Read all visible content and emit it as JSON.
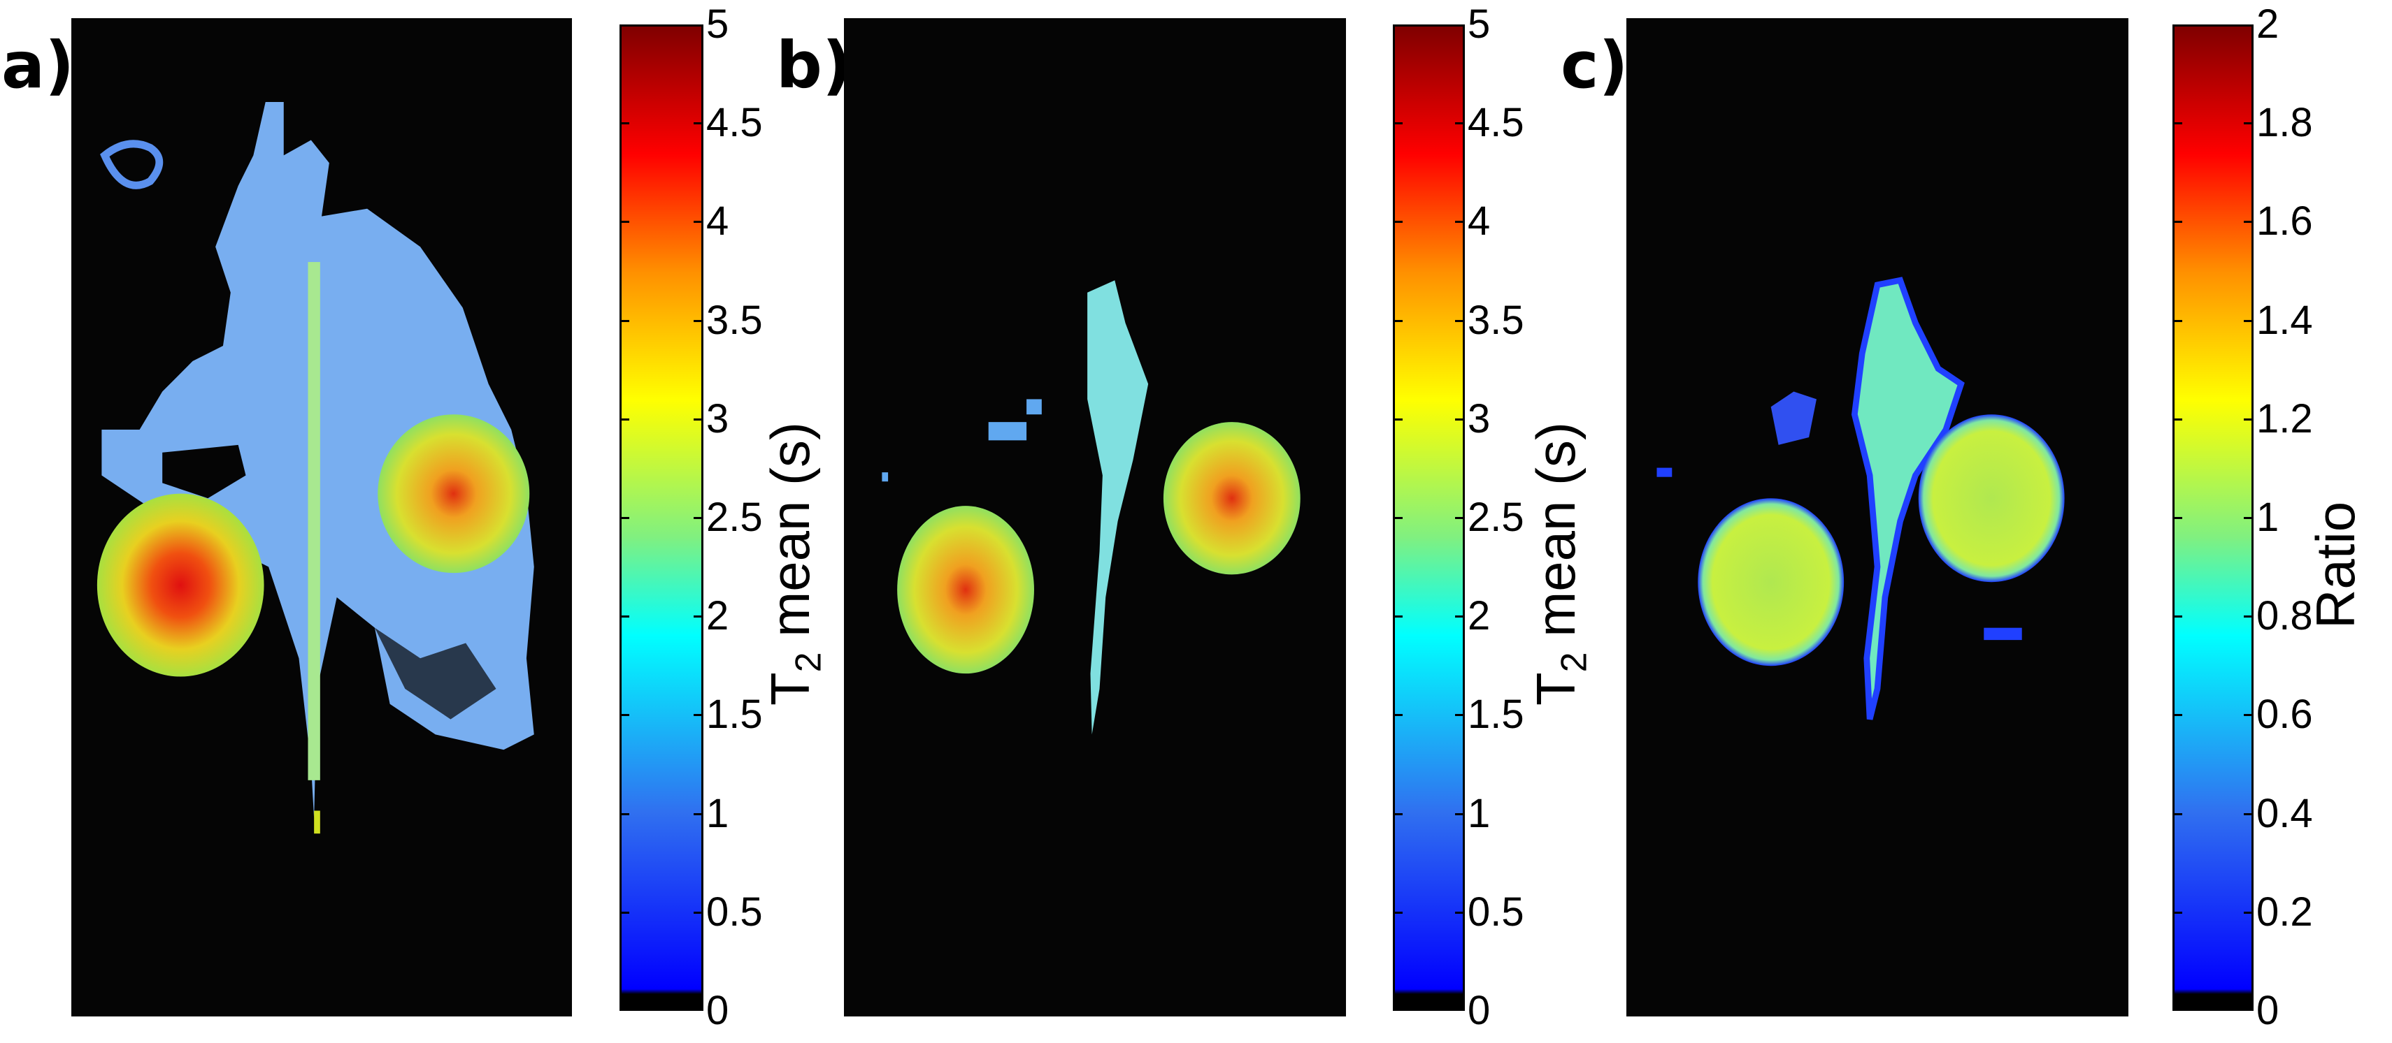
{
  "panels": [
    {
      "label": "a)",
      "colorbar": {
        "label_main": "T",
        "label_sub": "2",
        "label_rest": " mean (s)",
        "ticks": [
          "0",
          "0.5",
          "1",
          "1.5",
          "2",
          "2.5",
          "3",
          "3.5",
          "4",
          "4.5",
          "5"
        ],
        "range": [
          0,
          5
        ]
      }
    },
    {
      "label": "b)",
      "colorbar": {
        "label_main": "T",
        "label_sub": "2",
        "label_rest": " mean (s)",
        "ticks": [
          "0",
          "0.5",
          "1",
          "1.5",
          "2",
          "2.5",
          "3",
          "3.5",
          "4",
          "4.5",
          "5"
        ],
        "range": [
          0,
          5
        ]
      }
    },
    {
      "label": "c)",
      "colorbar": {
        "label_main": "Ratio",
        "label_sub": "",
        "label_rest": "",
        "ticks": [
          "0",
          "0.2",
          "0.4",
          "0.6",
          "0.8",
          "1",
          "1.2",
          "1.4",
          "1.6",
          "1.8",
          "2"
        ],
        "range": [
          0,
          2
        ]
      }
    }
  ],
  "chart_data": [
    {
      "type": "heatmap",
      "panel": "a)",
      "colormap": "jet",
      "clim": [
        0,
        5
      ],
      "colorbar_label": "T2 mean (s)",
      "colorbar_ticks": [
        0,
        0.5,
        1,
        1.5,
        2,
        2.5,
        3,
        3.5,
        4,
        4.5,
        5
      ]
    },
    {
      "type": "heatmap",
      "panel": "b)",
      "colormap": "jet",
      "clim": [
        0,
        5
      ],
      "colorbar_label": "T2 mean (s)",
      "colorbar_ticks": [
        0,
        0.5,
        1,
        1.5,
        2,
        2.5,
        3,
        3.5,
        4,
        4.5,
        5
      ]
    },
    {
      "type": "heatmap",
      "panel": "c)",
      "colormap": "jet",
      "clim": [
        0,
        2
      ],
      "colorbar_label": "Ratio",
      "colorbar_ticks": [
        0,
        0.2,
        0.4,
        0.6,
        0.8,
        1,
        1.2,
        1.4,
        1.6,
        1.8,
        2
      ]
    }
  ],
  "colors": {
    "background": "#050505",
    "jet": [
      "#000000",
      "#0000ff",
      "#00ffff",
      "#ffff00",
      "#ff0000",
      "#800000"
    ]
  }
}
